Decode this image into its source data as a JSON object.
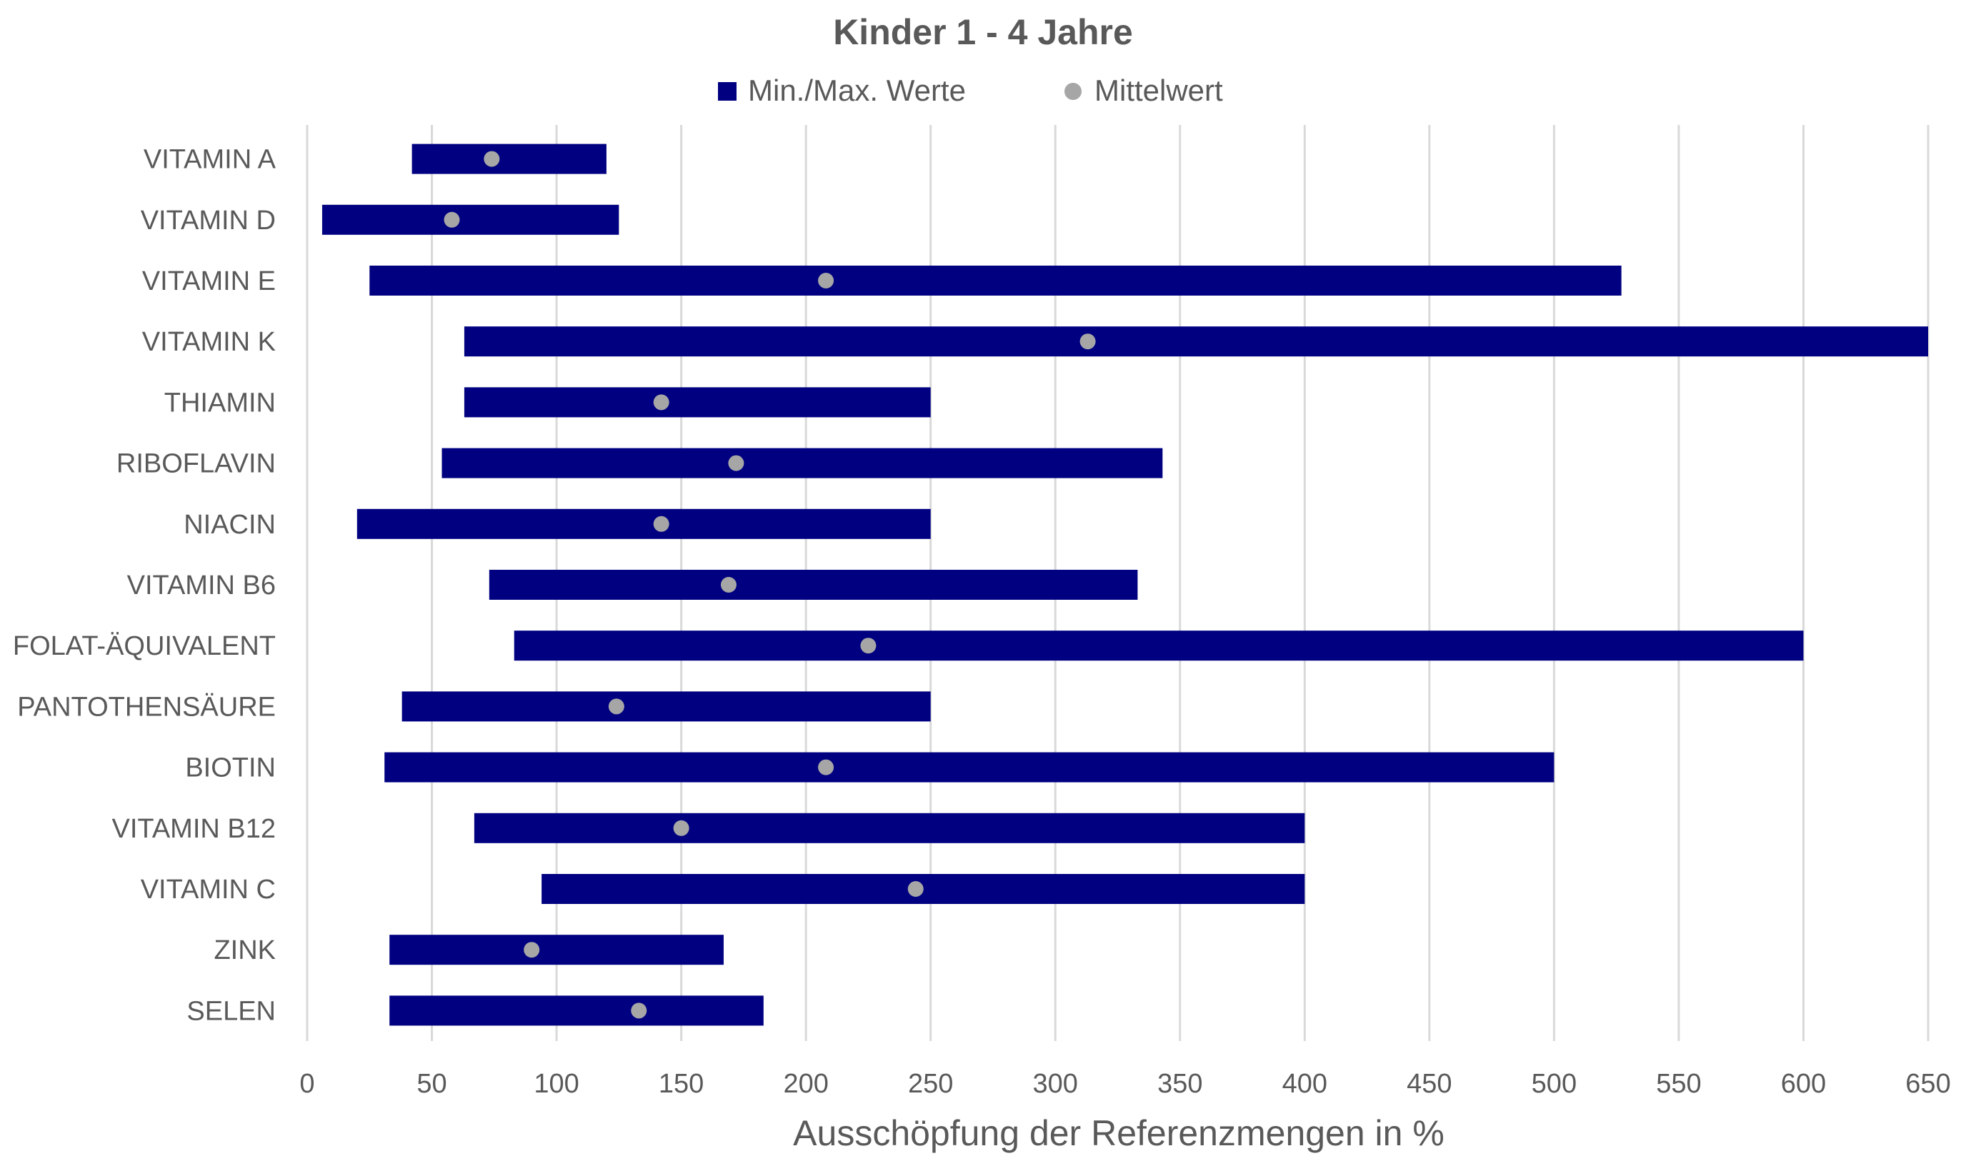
{
  "chart_data": {
    "type": "bar",
    "subtype": "floating-range-bar-with-mean-markers",
    "orientation": "horizontal",
    "title": "Kinder 1 - 4 Jahre",
    "xlabel": "Ausschöpfung der Referenzmengen in %",
    "ylabel": "",
    "xlim": [
      0,
      650
    ],
    "xticks": [
      0,
      50,
      100,
      150,
      200,
      250,
      300,
      350,
      400,
      450,
      500,
      550,
      600,
      650
    ],
    "grid": "vertical",
    "legend": {
      "placement": "top",
      "entries": [
        {
          "label": "Min./Max. Werte",
          "marker": "square",
          "color": "#000080"
        },
        {
          "label": "Mittelwert",
          "marker": "circle",
          "color": "#A6A6A6"
        }
      ]
    },
    "categories": [
      "VITAMIN A",
      "VITAMIN D",
      "VITAMIN E",
      "VITAMIN K",
      "THIAMIN",
      "RIBOFLAVIN",
      "NIACIN",
      "VITAMIN B6",
      "FOLAT-ÄQUIVALENT",
      "PANTOTHENSÄURE",
      "BIOTIN",
      "VITAMIN B12",
      "VITAMIN C",
      "ZINK",
      "SELEN"
    ],
    "series": [
      {
        "name": "Min./Max. Werte",
        "min": [
          42,
          6,
          25,
          63,
          63,
          54,
          20,
          73,
          83,
          38,
          31,
          67,
          94,
          33,
          33
        ],
        "max": [
          120,
          125,
          527,
          650,
          250,
          343,
          250,
          333,
          600,
          250,
          500,
          400,
          400,
          167,
          183
        ]
      },
      {
        "name": "Mittelwert",
        "values": [
          74,
          58,
          208,
          313,
          142,
          172,
          142,
          169,
          225,
          124,
          208,
          150,
          244,
          90,
          133
        ]
      }
    ]
  }
}
